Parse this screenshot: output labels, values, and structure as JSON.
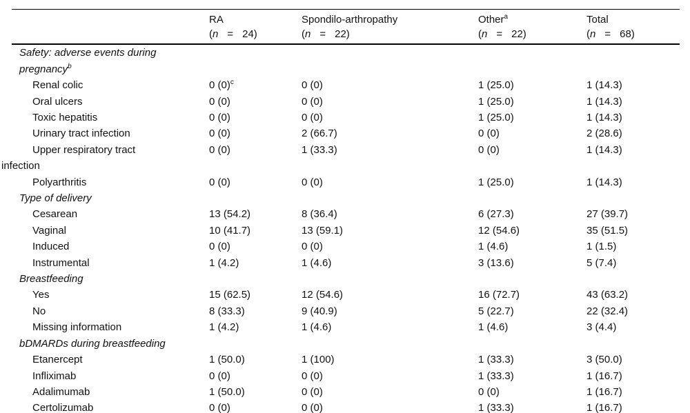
{
  "table": {
    "columns": [
      {
        "name": "RA",
        "sup": "",
        "open": "(",
        "n_symbol": "n",
        "equals": "=",
        "count": "24",
        "close": ")"
      },
      {
        "name": "Spondilo-arthropathy",
        "sup": "",
        "open": "(",
        "n_symbol": "n",
        "equals": "=",
        "count": "22",
        "close": ")"
      },
      {
        "name": "Other",
        "sup": "a",
        "open": "(",
        "n_symbol": "n",
        "equals": "=",
        "count": "22",
        "close": ")"
      },
      {
        "name": "Total",
        "sup": "",
        "open": "(",
        "n_symbol": "n",
        "equals": "=",
        "count": "68",
        "close": ")"
      }
    ],
    "rows": [
      {
        "type": "section",
        "label": "Safety: adverse events during pregnancy",
        "sup": "b"
      },
      {
        "type": "item",
        "label": "Renal colic",
        "cells": [
          {
            "v": "0 (0)",
            "s": "c"
          },
          {
            "v": "0 (0)"
          },
          {
            "v": "1 (25.0)"
          },
          {
            "v": "1 (14.3)"
          }
        ]
      },
      {
        "type": "item",
        "label": "Oral ulcers",
        "cells": [
          {
            "v": "0 (0)"
          },
          {
            "v": "0 (0)"
          },
          {
            "v": "1 (25.0)"
          },
          {
            "v": "1 (14.3)"
          }
        ]
      },
      {
        "type": "item",
        "label": "Toxic hepatitis",
        "cells": [
          {
            "v": "0 (0)"
          },
          {
            "v": "0 (0)"
          },
          {
            "v": "1 (25.0)"
          },
          {
            "v": "1 (14.3)"
          }
        ]
      },
      {
        "type": "item",
        "label": "Urinary tract infection",
        "cells": [
          {
            "v": "0 (0)"
          },
          {
            "v": "2 (66.7)"
          },
          {
            "v": "0 (0)"
          },
          {
            "v": "2 (28.6)"
          }
        ]
      },
      {
        "type": "item",
        "wrap": true,
        "label": "Upper respiratory tract infection",
        "cells": [
          {
            "v": "0 (0)"
          },
          {
            "v": "1 (33.3)"
          },
          {
            "v": "0 (0)"
          },
          {
            "v": "1 (14.3)"
          }
        ]
      },
      {
        "type": "item",
        "label": "Polyarthritis",
        "cells": [
          {
            "v": "0 (0)"
          },
          {
            "v": "0 (0)"
          },
          {
            "v": "1 (25.0)"
          },
          {
            "v": "1 (14.3)"
          }
        ]
      },
      {
        "type": "section",
        "label": "Type of delivery",
        "sup": ""
      },
      {
        "type": "item",
        "label": "Cesarean",
        "cells": [
          {
            "v": "13 (54.2)"
          },
          {
            "v": "8 (36.4)"
          },
          {
            "v": "6 (27.3)"
          },
          {
            "v": "27 (39.7)"
          }
        ]
      },
      {
        "type": "item",
        "label": "Vaginal",
        "cells": [
          {
            "v": "10 (41.7)"
          },
          {
            "v": "13 (59.1)"
          },
          {
            "v": "12 (54.6)"
          },
          {
            "v": "35 (51.5)"
          }
        ]
      },
      {
        "type": "item",
        "label": "Induced",
        "cells": [
          {
            "v": "0 (0)"
          },
          {
            "v": "0 (0)"
          },
          {
            "v": "1 (4.6)"
          },
          {
            "v": "1 (1.5)"
          }
        ]
      },
      {
        "type": "item",
        "label": "Instrumental",
        "cells": [
          {
            "v": "1 (4.2)"
          },
          {
            "v": "1 (4.6)"
          },
          {
            "v": "3 (13.6)"
          },
          {
            "v": "5 (7.4)"
          }
        ]
      },
      {
        "type": "section",
        "label": "Breastfeeding",
        "sup": ""
      },
      {
        "type": "item",
        "label": "Yes",
        "cells": [
          {
            "v": "15 (62.5)"
          },
          {
            "v": "12 (54.6)"
          },
          {
            "v": "16 (72.7)"
          },
          {
            "v": "43 (63.2)"
          }
        ]
      },
      {
        "type": "item",
        "label": "No",
        "cells": [
          {
            "v": "8 (33.3)"
          },
          {
            "v": "9 (40.9)"
          },
          {
            "v": "5 (22.7)"
          },
          {
            "v": "22 (32.4)"
          }
        ]
      },
      {
        "type": "item",
        "label": "Missing information",
        "cells": [
          {
            "v": "1 (4.2)"
          },
          {
            "v": "1 (4.6)"
          },
          {
            "v": "1 (4.6)"
          },
          {
            "v": "3 (4.4)"
          }
        ]
      },
      {
        "type": "section",
        "label": "bDMARDs during breastfeeding",
        "sup": ""
      },
      {
        "type": "item",
        "label": "Etanercept",
        "cells": [
          {
            "v": "1 (50.0)"
          },
          {
            "v": "1 (100)"
          },
          {
            "v": "1 (33.3)"
          },
          {
            "v": "3 (50.0)"
          }
        ]
      },
      {
        "type": "item",
        "label": "Infliximab",
        "cells": [
          {
            "v": "0 (0)"
          },
          {
            "v": "0 (0)"
          },
          {
            "v": "1 (33.3)"
          },
          {
            "v": "1 (16.7)"
          }
        ]
      },
      {
        "type": "item",
        "label": "Adalimumab",
        "cells": [
          {
            "v": "1 (50.0)"
          },
          {
            "v": "0 (0)"
          },
          {
            "v": "0 (0)"
          },
          {
            "v": "1 (16.7)"
          }
        ]
      },
      {
        "type": "item",
        "label": "Certolizumab",
        "cells": [
          {
            "v": "0 (0)"
          },
          {
            "v": "0 (0)"
          },
          {
            "v": "1 (33.3)"
          },
          {
            "v": "1 (16.7)"
          }
        ]
      }
    ]
  }
}
